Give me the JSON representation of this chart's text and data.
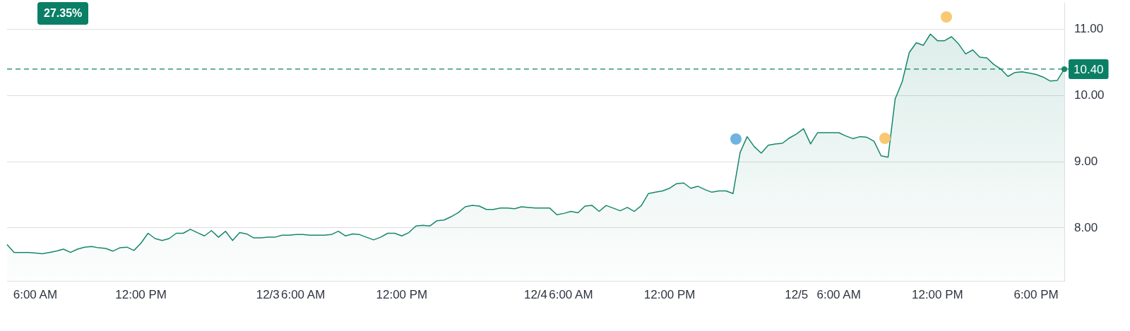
{
  "chart_data": {
    "type": "area",
    "categories": [
      null,
      null,
      null,
      null,
      "6:00 AM",
      null,
      null,
      null,
      null,
      null,
      null,
      null,
      null,
      null,
      null,
      null,
      null,
      null,
      null,
      "12:00 PM",
      null,
      null,
      null,
      null,
      null,
      null,
      null,
      null,
      null,
      null,
      null,
      null,
      null,
      null,
      null,
      null,
      null,
      "12/3",
      null,
      null,
      null,
      null,
      "6:00 AM",
      null,
      null,
      null,
      null,
      null,
      null,
      null,
      null,
      null,
      null,
      null,
      null,
      null,
      "12:00 PM",
      null,
      null,
      null,
      null,
      null,
      null,
      null,
      null,
      null,
      null,
      null,
      null,
      null,
      null,
      null,
      null,
      null,
      null,
      "12/4",
      null,
      null,
      null,
      null,
      "6:00 AM",
      null,
      null,
      null,
      null,
      null,
      null,
      null,
      null,
      null,
      null,
      null,
      null,
      null,
      "12:00 PM",
      null,
      null,
      null,
      null,
      null,
      null,
      null,
      null,
      null,
      null,
      null,
      null,
      null,
      null,
      null,
      null,
      null,
      "12/5",
      null,
      null,
      null,
      null,
      null,
      "6:00 AM",
      null,
      null,
      null,
      null,
      null,
      null,
      null,
      null,
      null,
      null,
      null,
      null,
      null,
      "12:00 PM",
      null,
      null,
      null,
      null,
      null,
      null,
      null,
      null,
      null,
      null,
      null,
      null,
      null,
      "6:00 PM",
      null,
      null,
      null,
      null
    ],
    "values": [
      7.75,
      7.63,
      7.63,
      7.63,
      7.62,
      7.61,
      7.63,
      7.65,
      7.68,
      7.63,
      7.68,
      7.71,
      7.72,
      7.7,
      7.69,
      7.65,
      7.7,
      7.71,
      7.66,
      7.77,
      7.92,
      7.84,
      7.81,
      7.84,
      7.92,
      7.92,
      7.98,
      7.93,
      7.88,
      7.96,
      7.86,
      7.95,
      7.81,
      7.93,
      7.91,
      7.85,
      7.85,
      7.86,
      7.86,
      7.89,
      7.89,
      7.9,
      7.9,
      7.89,
      7.89,
      7.89,
      7.9,
      7.95,
      7.88,
      7.91,
      7.9,
      7.86,
      7.82,
      7.86,
      7.92,
      7.92,
      7.88,
      7.93,
      8.03,
      8.04,
      8.03,
      8.11,
      8.12,
      8.17,
      8.23,
      8.32,
      8.34,
      8.33,
      8.28,
      8.28,
      8.3,
      8.3,
      8.29,
      8.32,
      8.31,
      8.3,
      8.3,
      8.3,
      8.2,
      8.22,
      8.25,
      8.23,
      8.33,
      8.34,
      8.25,
      8.34,
      8.3,
      8.26,
      8.31,
      8.25,
      8.34,
      8.52,
      8.54,
      8.56,
      8.6,
      8.67,
      8.68,
      8.6,
      8.63,
      8.58,
      8.54,
      8.56,
      8.56,
      8.52,
      9.14,
      9.38,
      9.23,
      9.13,
      9.25,
      9.27,
      9.28,
      9.36,
      9.42,
      9.5,
      9.27,
      9.44,
      9.44,
      9.44,
      9.44,
      9.39,
      9.35,
      9.38,
      9.37,
      9.31,
      9.09,
      9.07,
      9.95,
      10.21,
      10.65,
      10.8,
      10.76,
      10.93,
      10.83,
      10.83,
      10.89,
      10.78,
      10.63,
      10.69,
      10.58,
      10.57,
      10.47,
      10.4,
      10.29,
      10.35,
      10.36,
      10.34,
      10.32,
      10.28,
      10.22,
      10.23,
      10.4
    ],
    "color": "#16876b",
    "ylim": [
      7.2,
      11.4
    ],
    "yticks": [
      {
        "value": 8,
        "label": "8.00"
      },
      {
        "value": 9,
        "label": "9.00"
      },
      {
        "value": 10,
        "label": "10.00"
      },
      {
        "value": 11,
        "label": "11.00"
      }
    ],
    "grid": "y",
    "ref_lines": [
      {
        "axis": "y",
        "value": 10.4,
        "label": "10.40",
        "color": "#0a7f66",
        "line_style": "dashed"
      }
    ],
    "annotations": [
      "27.35%"
    ]
  }
}
